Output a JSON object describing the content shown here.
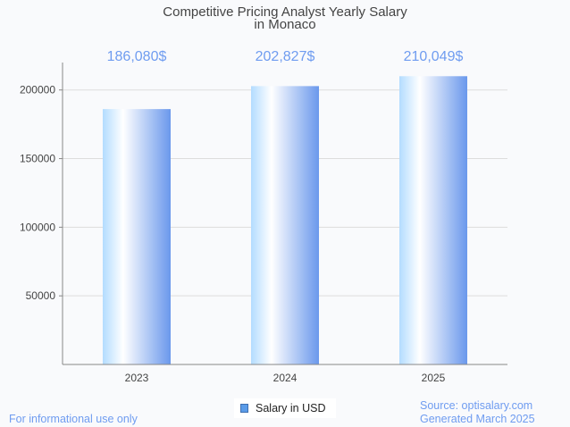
{
  "chart_data": {
    "type": "bar",
    "title": [
      "Competitive Pricing Analyst Yearly Salary",
      "in Monaco"
    ],
    "categories": [
      "2023",
      "2024",
      "2025"
    ],
    "values": [
      186080,
      202827,
      210049
    ],
    "data_labels": [
      "186,080$",
      "202,827$",
      "210,049$"
    ],
    "yticks": [
      50000,
      100000,
      150000,
      200000
    ],
    "ylim": [
      0,
      220000
    ],
    "grid": true,
    "legend": {
      "label": "Salary in USD",
      "placement": "bottom-center"
    },
    "colors": {
      "bar_light": "#b3dcff",
      "bar_mid": "#ffffff",
      "bar_dark": "#6a98ec",
      "label": "#6f9cf0"
    }
  },
  "footer": {
    "left": "For informational use only",
    "source": "Source: optisalary.com",
    "generated": "Generated March 2025"
  }
}
